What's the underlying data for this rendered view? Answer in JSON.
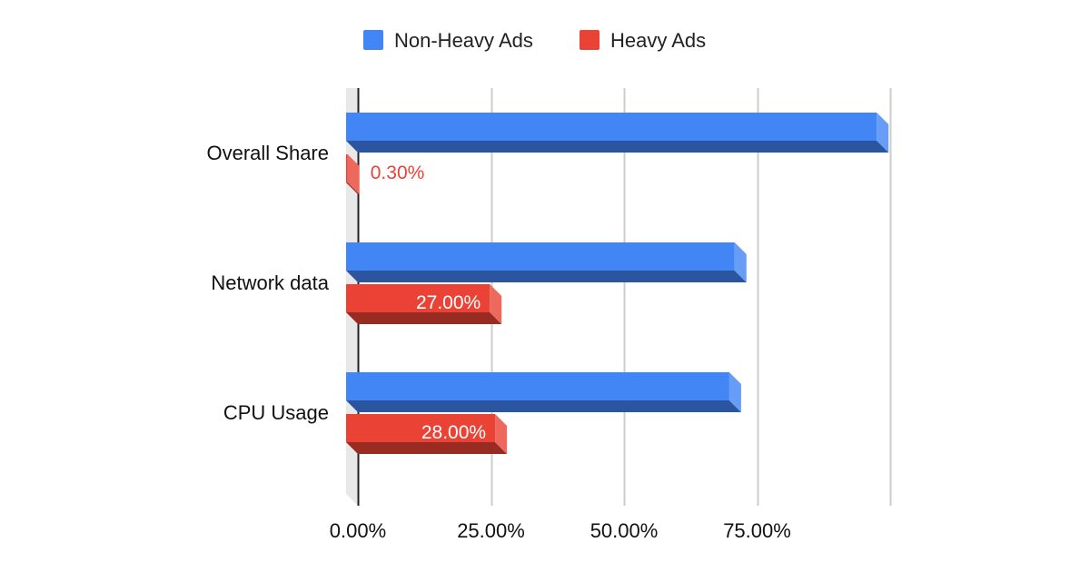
{
  "chart_data": {
    "type": "bar",
    "orientation": "horizontal",
    "style": "3d",
    "categories": [
      "Overall Share",
      "Network data",
      "CPU Usage"
    ],
    "series": [
      {
        "name": "Non-Heavy Ads",
        "color": "#4285f4",
        "values": [
          99.7,
          73.0,
          72.0
        ]
      },
      {
        "name": "Heavy Ads",
        "color": "#ea4335",
        "values": [
          0.3,
          27.0,
          28.0
        ]
      }
    ],
    "data_labels": {
      "Heavy Ads": [
        "0.30%",
        "27.00%",
        "28.00%"
      ]
    },
    "x_ticks": [
      "0.00%",
      "25.00%",
      "50.00%",
      "75.00%"
    ],
    "xlim": [
      0,
      100
    ],
    "legend_position": "top",
    "grid": true
  }
}
